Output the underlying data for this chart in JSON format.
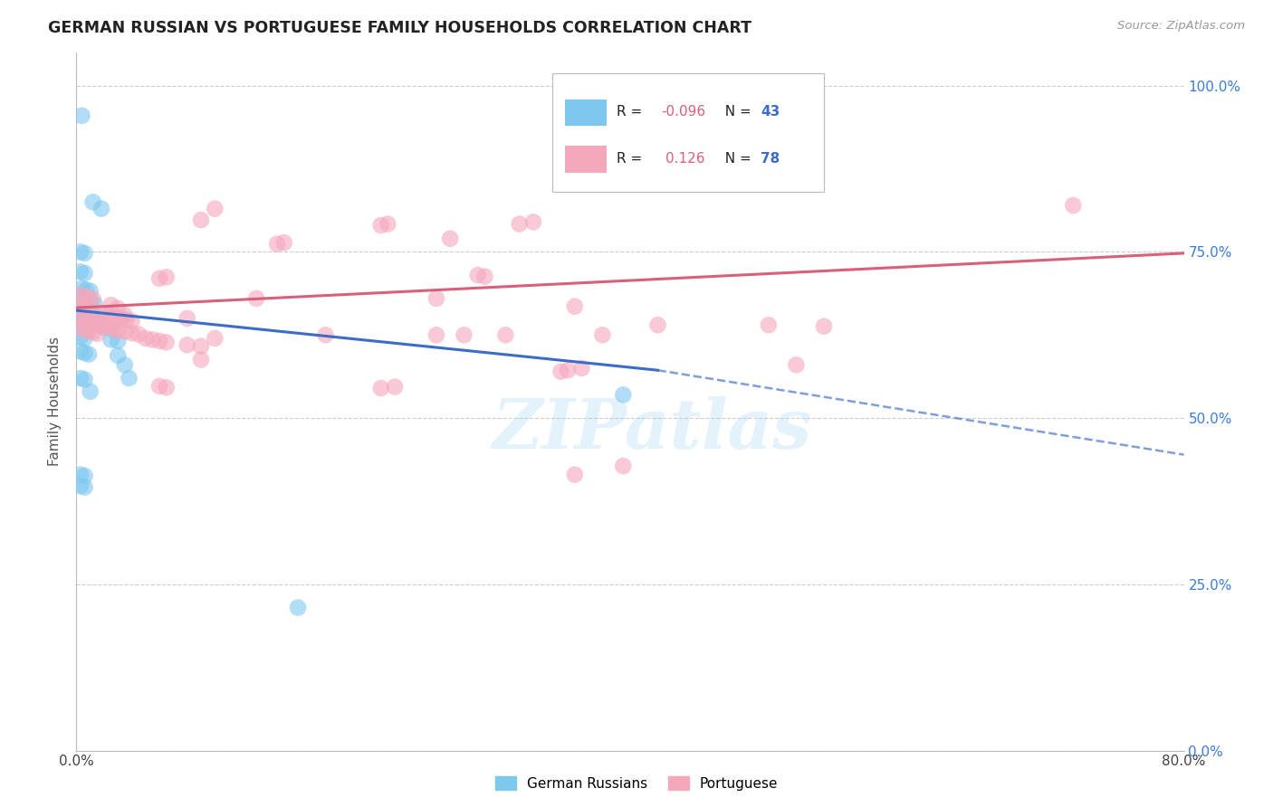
{
  "title": "GERMAN RUSSIAN VS PORTUGUESE FAMILY HOUSEHOLDS CORRELATION CHART",
  "source": "Source: ZipAtlas.com",
  "ylabel": "Family Households",
  "yticks": [
    "0.0%",
    "25.0%",
    "50.0%",
    "75.0%",
    "100.0%"
  ],
  "ytick_vals": [
    0.0,
    0.25,
    0.5,
    0.75,
    1.0
  ],
  "xlim": [
    0.0,
    0.8
  ],
  "ylim": [
    0.0,
    1.05
  ],
  "blue_color": "#7EC8F0",
  "pink_color": "#F5A8BC",
  "blue_line_color": "#3B6CC7",
  "pink_line_color": "#D9607A",
  "blue_points": [
    [
      0.004,
      0.955
    ],
    [
      0.012,
      0.825
    ],
    [
      0.018,
      0.815
    ],
    [
      0.003,
      0.75
    ],
    [
      0.006,
      0.748
    ],
    [
      0.003,
      0.72
    ],
    [
      0.006,
      0.718
    ],
    [
      0.004,
      0.695
    ],
    [
      0.007,
      0.693
    ],
    [
      0.01,
      0.691
    ],
    [
      0.004,
      0.678
    ],
    [
      0.007,
      0.676
    ],
    [
      0.01,
      0.674
    ],
    [
      0.013,
      0.672
    ],
    [
      0.003,
      0.66
    ],
    [
      0.006,
      0.658
    ],
    [
      0.009,
      0.656
    ],
    [
      0.012,
      0.654
    ],
    [
      0.015,
      0.652
    ],
    [
      0.003,
      0.642
    ],
    [
      0.006,
      0.64
    ],
    [
      0.009,
      0.638
    ],
    [
      0.02,
      0.636
    ],
    [
      0.025,
      0.634
    ],
    [
      0.003,
      0.622
    ],
    [
      0.006,
      0.62
    ],
    [
      0.025,
      0.618
    ],
    [
      0.03,
      0.616
    ],
    [
      0.003,
      0.6
    ],
    [
      0.006,
      0.598
    ],
    [
      0.009,
      0.596
    ],
    [
      0.03,
      0.594
    ],
    [
      0.035,
      0.58
    ],
    [
      0.003,
      0.56
    ],
    [
      0.006,
      0.558
    ],
    [
      0.01,
      0.54
    ],
    [
      0.003,
      0.415
    ],
    [
      0.006,
      0.413
    ],
    [
      0.003,
      0.398
    ],
    [
      0.006,
      0.396
    ],
    [
      0.16,
      0.215
    ],
    [
      0.395,
      0.535
    ],
    [
      0.038,
      0.56
    ]
  ],
  "pink_points": [
    [
      0.003,
      0.685
    ],
    [
      0.006,
      0.683
    ],
    [
      0.009,
      0.681
    ],
    [
      0.012,
      0.679
    ],
    [
      0.003,
      0.668
    ],
    [
      0.006,
      0.666
    ],
    [
      0.009,
      0.664
    ],
    [
      0.003,
      0.65
    ],
    [
      0.006,
      0.648
    ],
    [
      0.009,
      0.646
    ],
    [
      0.012,
      0.644
    ],
    [
      0.015,
      0.642
    ],
    [
      0.018,
      0.658
    ],
    [
      0.022,
      0.656
    ],
    [
      0.025,
      0.654
    ],
    [
      0.028,
      0.652
    ],
    [
      0.032,
      0.65
    ],
    [
      0.036,
      0.648
    ],
    [
      0.04,
      0.646
    ],
    [
      0.003,
      0.635
    ],
    [
      0.006,
      0.633
    ],
    [
      0.009,
      0.631
    ],
    [
      0.012,
      0.629
    ],
    [
      0.015,
      0.627
    ],
    [
      0.018,
      0.64
    ],
    [
      0.022,
      0.638
    ],
    [
      0.025,
      0.636
    ],
    [
      0.028,
      0.634
    ],
    [
      0.03,
      0.632
    ],
    [
      0.035,
      0.63
    ],
    [
      0.04,
      0.628
    ],
    [
      0.045,
      0.626
    ],
    [
      0.05,
      0.62
    ],
    [
      0.055,
      0.618
    ],
    [
      0.06,
      0.616
    ],
    [
      0.065,
      0.614
    ],
    [
      0.08,
      0.61
    ],
    [
      0.09,
      0.608
    ],
    [
      0.1,
      0.62
    ],
    [
      0.13,
      0.68
    ],
    [
      0.145,
      0.762
    ],
    [
      0.15,
      0.764
    ],
    [
      0.18,
      0.625
    ],
    [
      0.22,
      0.79
    ],
    [
      0.225,
      0.792
    ],
    [
      0.26,
      0.625
    ],
    [
      0.26,
      0.68
    ],
    [
      0.27,
      0.77
    ],
    [
      0.28,
      0.625
    ],
    [
      0.29,
      0.715
    ],
    [
      0.295,
      0.713
    ],
    [
      0.31,
      0.625
    ],
    [
      0.32,
      0.792
    ],
    [
      0.33,
      0.795
    ],
    [
      0.35,
      0.57
    ],
    [
      0.355,
      0.572
    ],
    [
      0.36,
      0.415
    ],
    [
      0.36,
      0.668
    ],
    [
      0.365,
      0.575
    ],
    [
      0.38,
      0.625
    ],
    [
      0.42,
      0.64
    ],
    [
      0.5,
      0.64
    ],
    [
      0.52,
      0.58
    ],
    [
      0.54,
      0.638
    ],
    [
      0.06,
      0.71
    ],
    [
      0.065,
      0.712
    ],
    [
      0.09,
      0.798
    ],
    [
      0.1,
      0.815
    ],
    [
      0.03,
      0.665
    ],
    [
      0.08,
      0.65
    ],
    [
      0.035,
      0.655
    ],
    [
      0.06,
      0.548
    ],
    [
      0.065,
      0.546
    ],
    [
      0.09,
      0.588
    ],
    [
      0.22,
      0.545
    ],
    [
      0.23,
      0.547
    ],
    [
      0.72,
      0.82
    ],
    [
      0.395,
      0.428
    ],
    [
      0.025,
      0.67
    ]
  ],
  "blue_line_solid_end": 0.42,
  "blue_line_y_start": 0.662,
  "blue_line_y_split": 0.572,
  "blue_line_y_end": 0.445,
  "pink_line_y_start": 0.666,
  "pink_line_y_end": 0.748
}
